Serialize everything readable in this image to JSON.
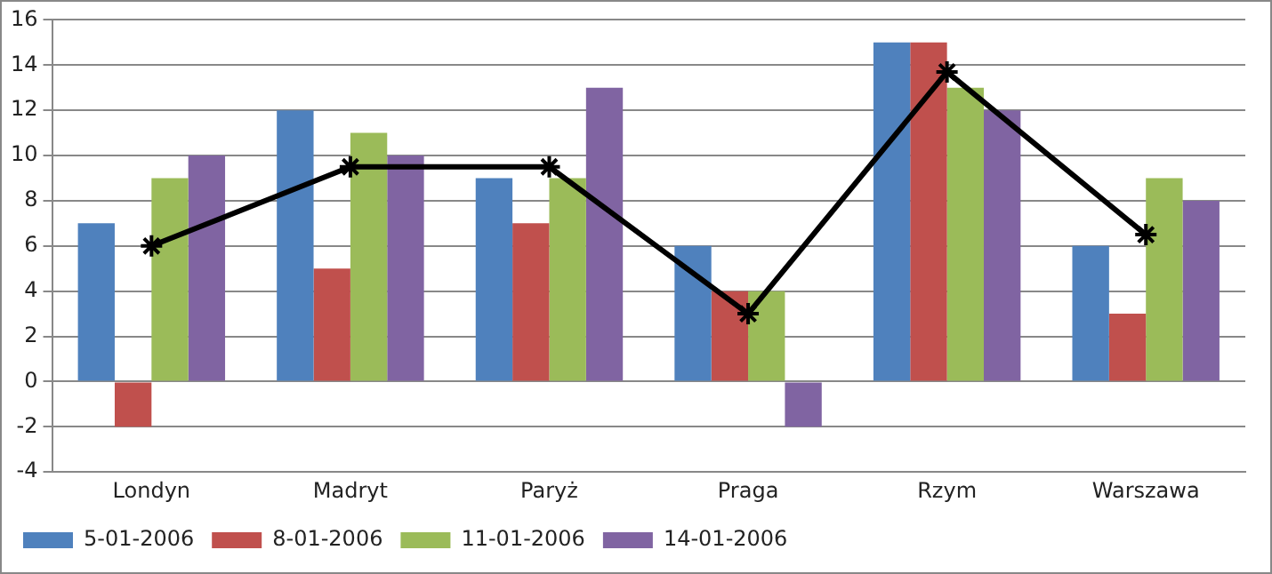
{
  "chart_data": {
    "type": "bar",
    "categories": [
      "Londyn",
      "Madryt",
      "Paryż",
      "Praga",
      "Rzym",
      "Warszawa"
    ],
    "series": [
      {
        "name": "5-01-2006",
        "color": "#4f81bd",
        "values": [
          7,
          12,
          9,
          6,
          15,
          6
        ]
      },
      {
        "name": "8-01-2006",
        "color": "#c0504d",
        "values": [
          -2,
          5,
          7,
          4,
          15,
          3
        ]
      },
      {
        "name": "11-01-2006",
        "color": "#9bbb59",
        "values": [
          9,
          11,
          9,
          4,
          13,
          9
        ]
      },
      {
        "name": "14-01-2006",
        "color": "#8064a2",
        "values": [
          10,
          10,
          13,
          -2,
          12,
          8
        ]
      },
      {
        "type": "line",
        "color": "#000000",
        "values": [
          6,
          9.5,
          9.5,
          3,
          13.7,
          6.5
        ]
      }
    ],
    "ylim": [
      -4,
      16
    ],
    "yticks": [
      -4,
      -2,
      0,
      2,
      4,
      6,
      8,
      10,
      12,
      14,
      16
    ],
    "grid": "y",
    "legend": "bottom left",
    "marker": "cross",
    "line_style": "solid"
  }
}
